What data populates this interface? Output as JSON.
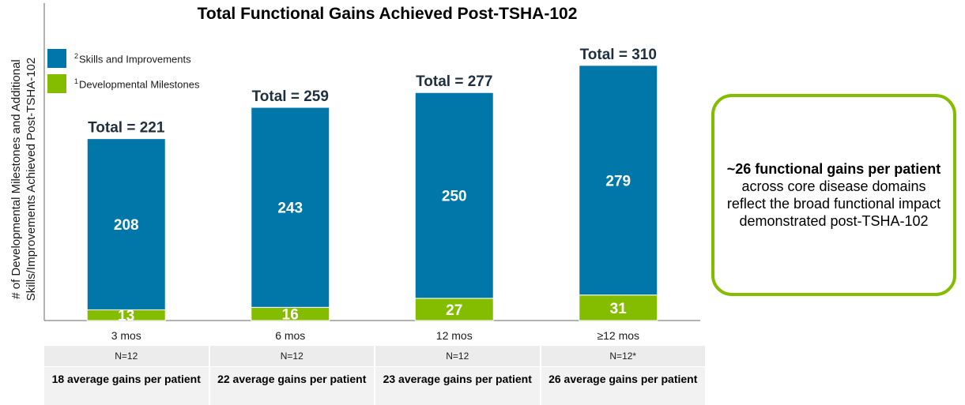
{
  "colors": {
    "skills": "#0077a8",
    "milestones": "#84bd00",
    "callout_border": "#84bd00",
    "total_label": "#1f2f3f"
  },
  "chart_data": {
    "type": "bar",
    "stacked": true,
    "title": "Total Functional Gains Achieved Post-TSHA-102",
    "ylabel": "# of Developmental Milestones and Additional Skills/Improvements Achieved Post-TSHA-102",
    "xlabel": "",
    "categories": [
      "3 mos",
      "6 mos",
      "12 mos",
      "≥12 mos"
    ],
    "series": [
      {
        "name": "Developmental Milestones",
        "superscript": "1",
        "values": [
          13,
          16,
          27,
          31
        ]
      },
      {
        "name": "Skills and Improvements",
        "superscript": "2",
        "values": [
          208,
          243,
          250,
          279
        ]
      }
    ],
    "totals": [
      221,
      259,
      277,
      310
    ],
    "total_labels": [
      "Total = 221",
      "Total = 259",
      "Total = 277",
      "Total = 310"
    ],
    "ylim": [
      0,
      330
    ],
    "grid": false,
    "legend_position": "top-left",
    "sample_sizes": [
      "N=12",
      "N=12",
      "N=12",
      "N=12*"
    ],
    "average_gains": [
      "18 average gains per patient",
      "22 average gains per patient",
      "23 average gains per patient",
      "26 average gains per patient"
    ]
  },
  "legend": {
    "skills": {
      "sup": "2",
      "label": "Skills and Improvements"
    },
    "milestones": {
      "sup": "1",
      "label": "Developmental Milestones"
    }
  },
  "callout": {
    "bold": "~26 functional gains per patient",
    "rest": " across core disease domains reflect the broad functional impact demonstrated post-TSHA-102"
  }
}
